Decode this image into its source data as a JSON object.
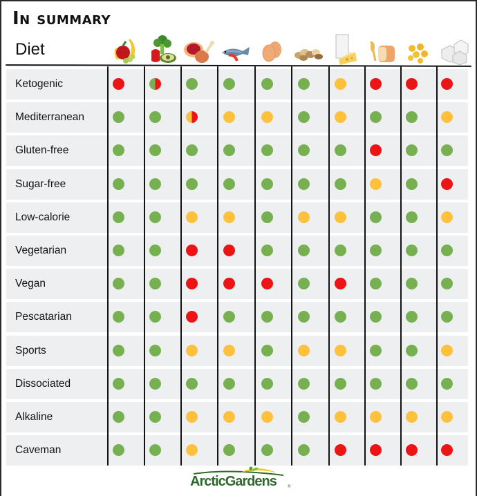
{
  "title": "In summary",
  "diet_header": "Diet",
  "colors": {
    "green": "#76b050",
    "yellow": "#fec13d",
    "red": "#ec1414",
    "row_bg": "#eeeff1"
  },
  "columns": [
    {
      "key": "fruits",
      "icon": "fruits-icon"
    },
    {
      "key": "vegetables",
      "icon": "vegetables-icon"
    },
    {
      "key": "meat",
      "icon": "meat-icon"
    },
    {
      "key": "fish",
      "icon": "fish-seafood-icon"
    },
    {
      "key": "eggs",
      "icon": "eggs-icon"
    },
    {
      "key": "nuts",
      "icon": "nuts-legumes-icon"
    },
    {
      "key": "dairy",
      "icon": "dairy-icon"
    },
    {
      "key": "grains",
      "icon": "grains-bread-icon"
    },
    {
      "key": "pasta",
      "icon": "pasta-icon"
    },
    {
      "key": "sugar",
      "icon": "sugar-icon"
    }
  ],
  "rows": [
    {
      "label": "Ketogenic",
      "values": [
        "R",
        "G|R",
        "G",
        "G",
        "G",
        "G",
        "Y",
        "R",
        "R",
        "R"
      ]
    },
    {
      "label": "Mediterranean",
      "values": [
        "G",
        "G",
        "Y|R",
        "Y",
        "Y",
        "G",
        "Y",
        "G",
        "G",
        "Y"
      ]
    },
    {
      "label": "Gluten-free",
      "values": [
        "G",
        "G",
        "G",
        "G",
        "G",
        "G",
        "G",
        "R",
        "G",
        "G"
      ]
    },
    {
      "label": "Sugar-free",
      "values": [
        "G",
        "G",
        "G",
        "G",
        "G",
        "G",
        "G",
        "Y",
        "G",
        "R"
      ]
    },
    {
      "label": "Low-calorie",
      "values": [
        "G",
        "G",
        "Y",
        "Y",
        "G",
        "Y",
        "Y",
        "G",
        "G",
        "Y"
      ]
    },
    {
      "label": "Vegetarian",
      "values": [
        "G",
        "G",
        "R",
        "R",
        "G",
        "G",
        "G",
        "G",
        "G",
        "G"
      ]
    },
    {
      "label": "Vegan",
      "values": [
        "G",
        "G",
        "R",
        "R",
        "R",
        "G",
        "R",
        "G",
        "G",
        "G"
      ]
    },
    {
      "label": "Pescatarian",
      "values": [
        "G",
        "G",
        "R",
        "G",
        "G",
        "G",
        "G",
        "G",
        "G",
        "G"
      ]
    },
    {
      "label": "Sports",
      "values": [
        "G",
        "G",
        "Y",
        "Y",
        "G",
        "Y",
        "Y",
        "G",
        "G",
        "Y"
      ]
    },
    {
      "label": "Dissociated",
      "values": [
        "G",
        "G",
        "G",
        "G",
        "G",
        "G",
        "G",
        "G",
        "G",
        "G"
      ]
    },
    {
      "label": "Alkaline",
      "values": [
        "G",
        "G",
        "Y",
        "Y",
        "Y",
        "G",
        "Y",
        "Y",
        "Y",
        "Y"
      ]
    },
    {
      "label": "Caveman",
      "values": [
        "G",
        "G",
        "Y",
        "G",
        "G",
        "G",
        "R",
        "R",
        "R",
        "R"
      ]
    }
  ],
  "logo": {
    "text": "ArcticGardens",
    "mark": "®"
  }
}
